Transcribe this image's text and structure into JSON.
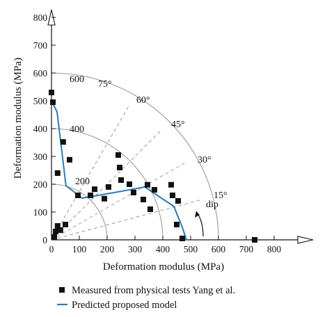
{
  "chart_data": {
    "type": "scatter",
    "xlabel": "Deformation modulus (MPa)",
    "ylabel": "Deformation modulus (MPa)",
    "xlim": [
      0,
      900
    ],
    "ylim": [
      0,
      850
    ],
    "x_ticks": [
      "0",
      "100",
      "200",
      "300",
      "400",
      "500",
      "600",
      "700",
      "800"
    ],
    "y_ticks": [
      "0",
      "100",
      "200",
      "300",
      "400",
      "500",
      "600",
      "700",
      "800"
    ],
    "grid": false,
    "legend_position": "bottom",
    "polar_overlay": {
      "radii": [
        200,
        400,
        600
      ],
      "radius_labels": [
        "200",
        "400",
        "600"
      ],
      "angles_deg": [
        15,
        30,
        45,
        60,
        75
      ],
      "angle_labels": [
        "15°",
        "30°",
        "45°",
        "60°",
        "75°"
      ],
      "dashed_rays_deg": [
        15,
        30,
        45,
        60
      ],
      "dip_label": "dip"
    },
    "series": [
      {
        "name": "Measured from physical tests Yang et al.",
        "kind": "scatter",
        "color": "#111111",
        "points": [
          [
            0,
            530
          ],
          [
            5,
            495
          ],
          [
            42,
            352
          ],
          [
            65,
            288
          ],
          [
            22,
            240
          ],
          [
            10,
            10
          ],
          [
            15,
            30
          ],
          [
            22,
            50
          ],
          [
            32,
            35
          ],
          [
            50,
            55
          ],
          [
            95,
            160
          ],
          [
            140,
            160
          ],
          [
            155,
            182
          ],
          [
            190,
            148
          ],
          [
            205,
            190
          ],
          [
            240,
            305
          ],
          [
            245,
            260
          ],
          [
            250,
            215
          ],
          [
            280,
            200
          ],
          [
            295,
            170
          ],
          [
            330,
            145
          ],
          [
            345,
            198
          ],
          [
            355,
            110
          ],
          [
            370,
            180
          ],
          [
            430,
            198
          ],
          [
            435,
            160
          ],
          [
            455,
            140
          ],
          [
            450,
            55
          ],
          [
            470,
            5
          ],
          [
            730,
            0
          ]
        ]
      },
      {
        "name": "Predicted proposed model",
        "kind": "line",
        "color": "#2e7bb5",
        "points": [
          [
            0,
            500
          ],
          [
            20,
            460
          ],
          [
            52,
            195
          ],
          [
            110,
            150
          ],
          [
            225,
            170
          ],
          [
            335,
            190
          ],
          [
            440,
            120
          ],
          [
            470,
            45
          ],
          [
            485,
            0
          ]
        ]
      }
    ]
  }
}
